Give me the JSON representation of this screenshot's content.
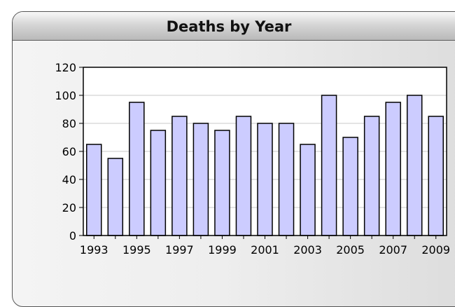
{
  "panel": {
    "title": "Deaths by Year"
  },
  "chart_data": {
    "type": "bar",
    "title": "Deaths by Year",
    "xlabel": "",
    "ylabel": "",
    "categories": [
      "1993",
      "1994",
      "1995",
      "1996",
      "1997",
      "1998",
      "1999",
      "2000",
      "2001",
      "2002",
      "2003",
      "2004",
      "2005",
      "2006",
      "2007",
      "2008",
      "2009"
    ],
    "values": [
      65,
      55,
      95,
      75,
      85,
      80,
      75,
      85,
      80,
      80,
      65,
      100,
      70,
      85,
      95,
      100,
      85
    ],
    "ylim": [
      0,
      120
    ],
    "yticks": [
      0,
      20,
      40,
      60,
      80,
      100,
      120
    ],
    "xtick_labels": [
      "1993",
      "1995",
      "1997",
      "1999",
      "2001",
      "2003",
      "2005",
      "2007",
      "2009"
    ],
    "bar_color": "#ccccff",
    "grid": true,
    "legend": "none"
  }
}
